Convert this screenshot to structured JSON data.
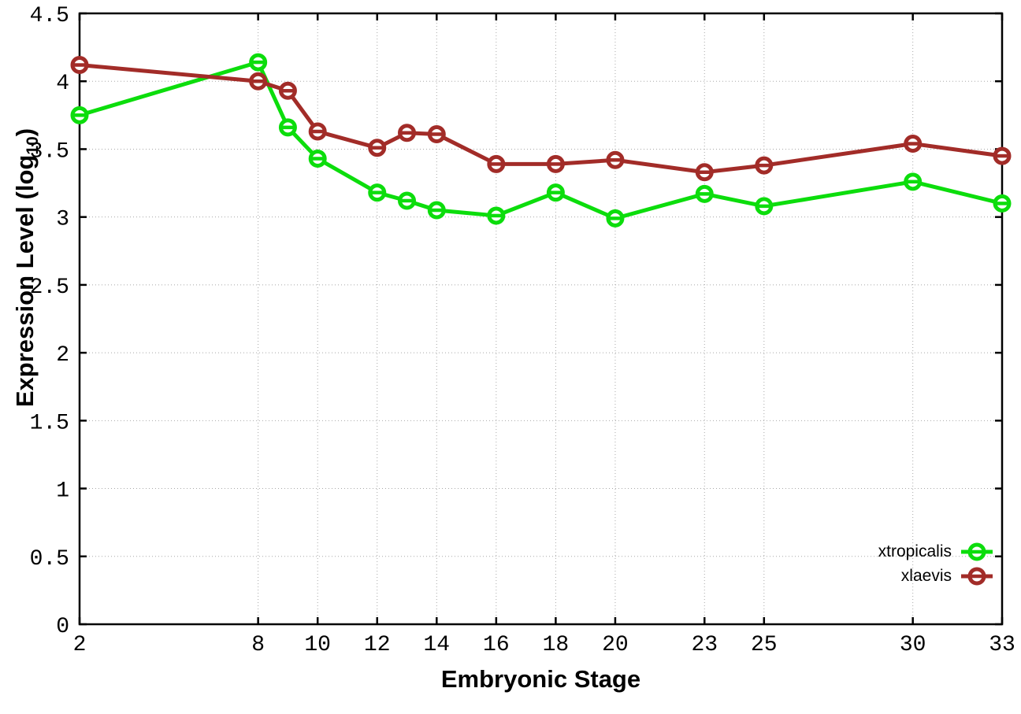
{
  "chart_data": {
    "type": "line",
    "title": "",
    "xlabel": "Embryonic Stage",
    "ylabel": {
      "main": "Expression Level (log",
      "sub": "10",
      "end": ")"
    },
    "xlim": [
      2,
      33
    ],
    "ylim": [
      0,
      4.5
    ],
    "grid": true,
    "legend_position": "bottom-right",
    "x": [
      2,
      8,
      9,
      10,
      12,
      13,
      14,
      16,
      18,
      20,
      23,
      25,
      30,
      33
    ],
    "xticks": [
      2,
      8,
      10,
      12,
      14,
      16,
      18,
      20,
      23,
      25,
      30,
      33
    ],
    "yticks": [
      0,
      0.5,
      1,
      1.5,
      2,
      2.5,
      3,
      3.5,
      4,
      4.5
    ],
    "series": [
      {
        "name": "xtropicalis",
        "color": "#0cdd0c",
        "marker": "open-circle",
        "values": [
          3.75,
          4.14,
          3.66,
          3.43,
          3.18,
          3.12,
          3.05,
          3.01,
          3.18,
          2.99,
          3.17,
          3.08,
          3.26,
          3.1
        ]
      },
      {
        "name": "xlaevis",
        "color": "#a22c28",
        "marker": "open-circle",
        "values": [
          4.12,
          4.0,
          3.93,
          3.63,
          3.51,
          3.62,
          3.61,
          3.39,
          3.39,
          3.42,
          3.33,
          3.38,
          3.54,
          3.45
        ]
      }
    ],
    "background": "#ffffff",
    "grid_color": "#a8a8a8",
    "frame_color": "#000000"
  }
}
